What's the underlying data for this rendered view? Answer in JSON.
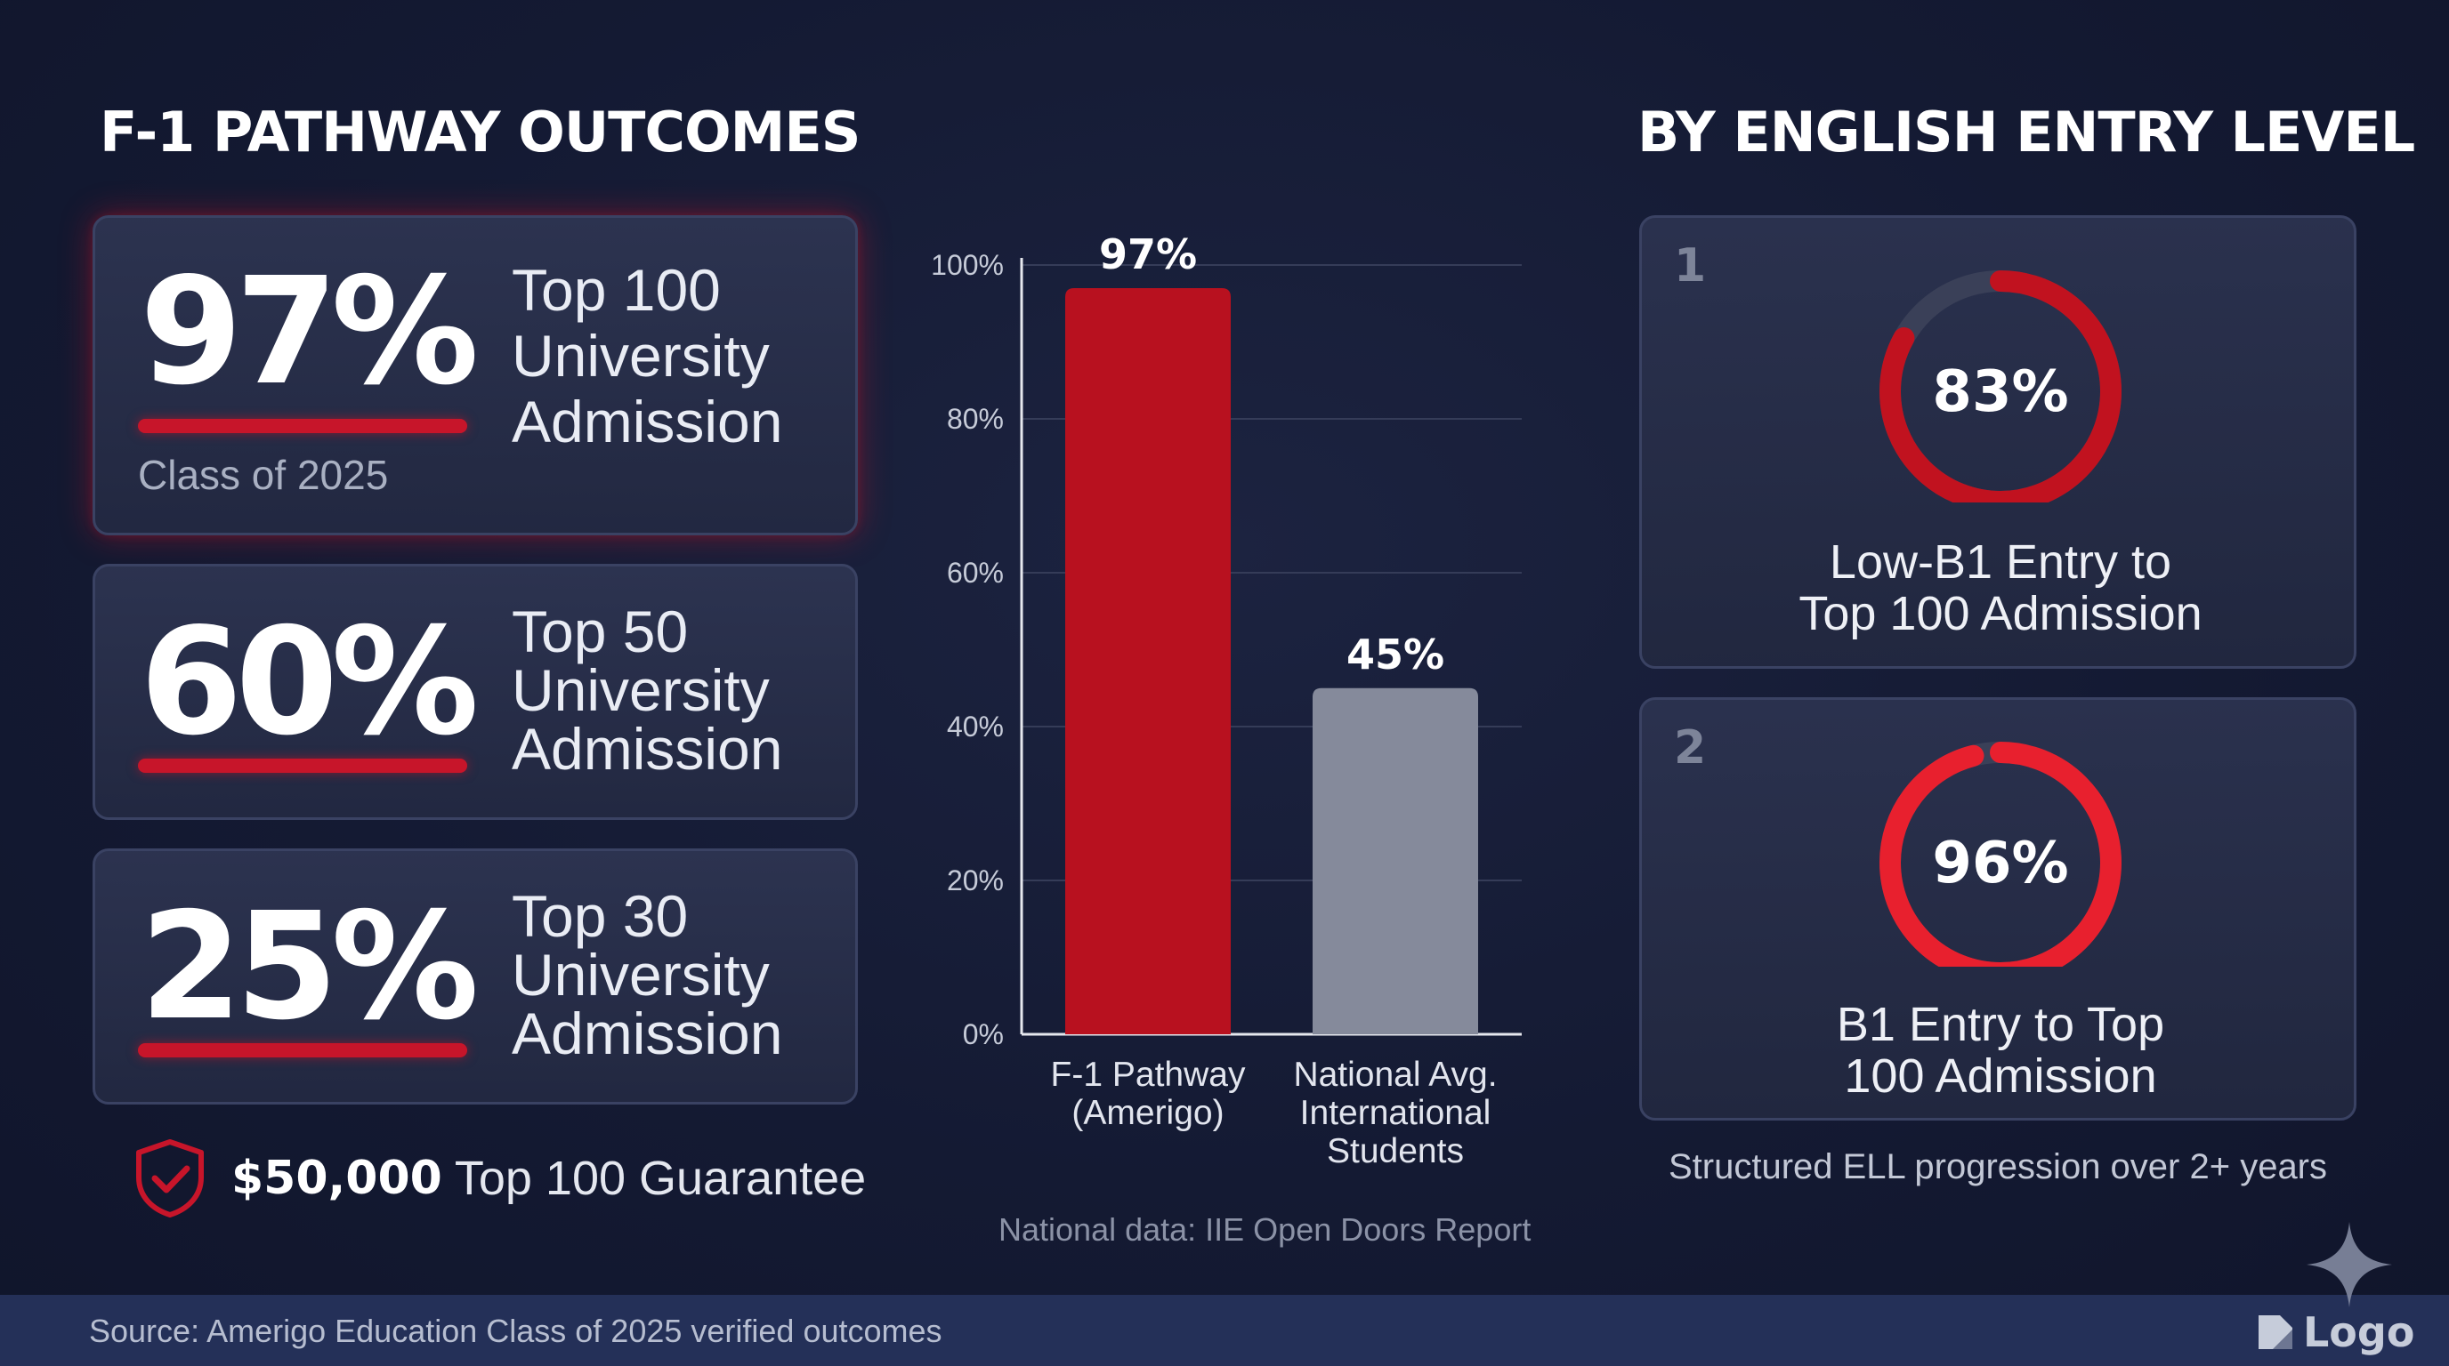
{
  "titles": {
    "left": "F-1 PATHWAY OUTCOMES",
    "right": "BY ENGLISH ENTRY LEVEL"
  },
  "stats": [
    {
      "value": "97%",
      "label": [
        "Top 100",
        "University",
        "Admission"
      ],
      "sub": "Class of 2025"
    },
    {
      "value": "60%",
      "label": [
        "Top 50",
        "University",
        "Admission"
      ]
    },
    {
      "value": "25%",
      "label": [
        "Top 30",
        "University",
        "Admission"
      ]
    }
  ],
  "guarantee": {
    "amount": "$50,000",
    "text": "Top 100 Guarantee"
  },
  "chart_data": {
    "type": "bar",
    "title": "",
    "categories": [
      [
        "F-1 Pathway",
        "(Amerigo)"
      ],
      [
        "National Avg.",
        "International",
        "Students"
      ]
    ],
    "values": [
      97,
      45
    ],
    "data_labels": [
      "97%",
      "45%"
    ],
    "colors": [
      "#b8111f",
      "#858a9b"
    ],
    "ylim": [
      0,
      100
    ],
    "yticks": [
      0,
      20,
      40,
      60,
      80,
      100
    ],
    "ytick_labels": [
      "0%",
      "20%",
      "40%",
      "60%",
      "80%",
      "100%"
    ],
    "grid": true,
    "xlabel": "",
    "ylabel": ""
  },
  "chart_note": "National data: IIE Open Doors Report",
  "levels": [
    {
      "num": "1",
      "value": 83,
      "value_label": "83%",
      "label": [
        "Low-B1 Entry to",
        "Top 100 Admission"
      ],
      "color": "#c1121f"
    },
    {
      "num": "2",
      "value": 96,
      "value_label": "96%",
      "label": [
        "B1 Entry to Top",
        "100 Admission"
      ],
      "color": "#e8202e"
    }
  ],
  "progression_note": "Structured ELL progression over 2+ years",
  "footer": {
    "source": "Source: Amerigo Education Class of 2025 verified outcomes"
  },
  "logo": {
    "text": "Logo"
  },
  "colors": {
    "accent": "#c7152a",
    "background": "#141a33",
    "footer": "#243058",
    "ring_track": "#3a4058"
  }
}
